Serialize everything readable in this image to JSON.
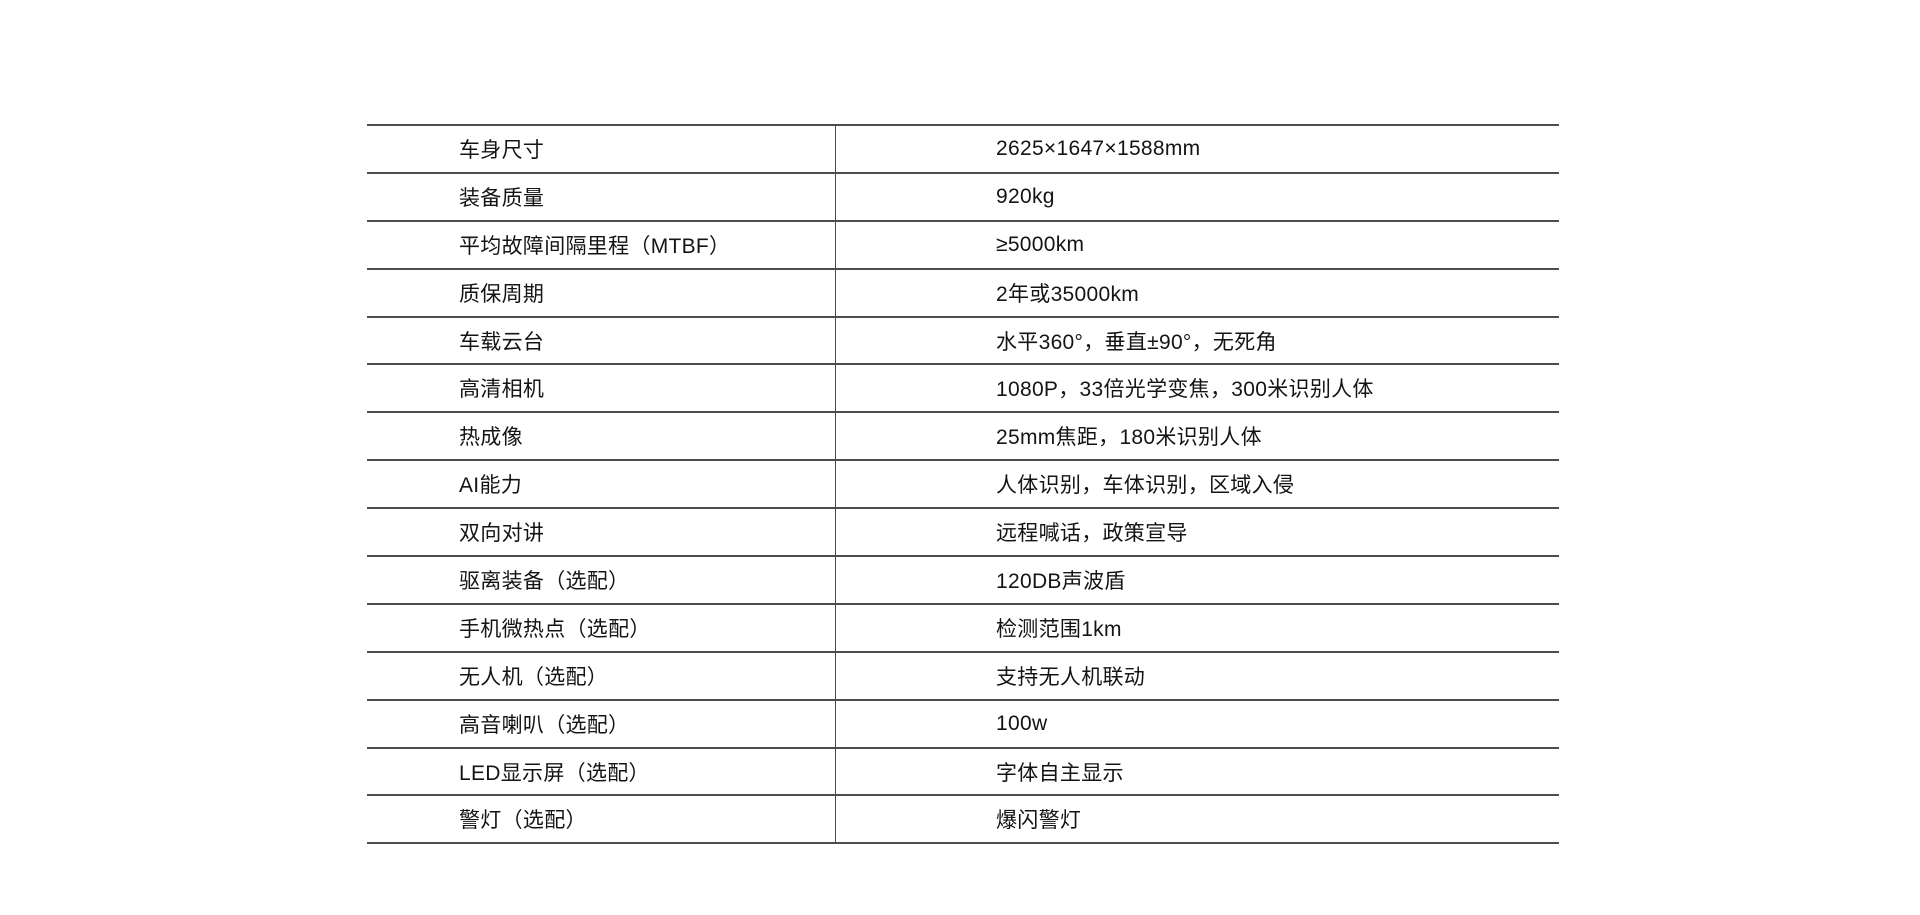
{
  "page": {
    "background_color": "#ffffff",
    "text_color": "#141414",
    "rule_color": "#4d4d4d"
  },
  "table": {
    "columns": [
      "spec-name",
      "spec-value"
    ],
    "rows": [
      {
        "label": "车身尺寸",
        "value": "2625×1647×1588mm"
      },
      {
        "label": "装备质量",
        "value": "920kg"
      },
      {
        "label": "平均故障间隔里程（MTBF）",
        "value": "≥5000km"
      },
      {
        "label": "质保周期",
        "value": "2年或35000km"
      },
      {
        "label": "车载云台",
        "value": "水平360°，垂直±90°，无死角"
      },
      {
        "label": "高清相机",
        "value": "1080P，33倍光学变焦，300米识别人体"
      },
      {
        "label": "热成像",
        "value": "25mm焦距，180米识别人体"
      },
      {
        "label": "AI能力",
        "value": "人体识别，车体识别，区域入侵"
      },
      {
        "label": "双向对讲",
        "value": "远程喊话，政策宣导"
      },
      {
        "label": "驱离装备（选配）",
        "value": "120DB声波盾"
      },
      {
        "label": "手机微热点（选配）",
        "value": "检测范围1km"
      },
      {
        "label": "无人机（选配）",
        "value": "支持无人机联动"
      },
      {
        "label": "高音喇叭（选配）",
        "value": "100w"
      },
      {
        "label": "LED显示屏（选配）",
        "value": "字体自主显示"
      },
      {
        "label": "警灯（选配）",
        "value": "爆闪警灯"
      }
    ]
  }
}
